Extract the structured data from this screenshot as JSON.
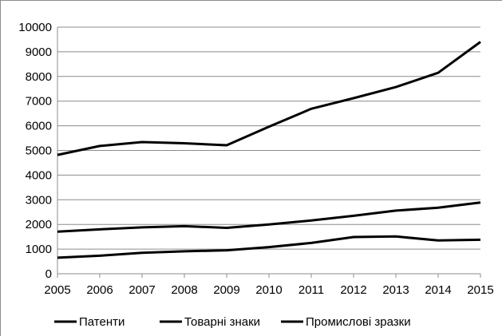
{
  "chart_data": {
    "type": "line",
    "x": [
      2005,
      2006,
      2007,
      2008,
      2009,
      2010,
      2011,
      2012,
      2013,
      2014,
      2015
    ],
    "xlim": [
      2005,
      2015
    ],
    "ylim": [
      0,
      10000
    ],
    "yticks": [
      0,
      1000,
      2000,
      3000,
      4000,
      5000,
      6000,
      7000,
      8000,
      9000,
      10000
    ],
    "grid": true,
    "legend_position": "bottom",
    "series_color": "#000000",
    "series": [
      {
        "name": "Патенти",
        "values": [
          4820,
          5180,
          5340,
          5290,
          5210,
          5960,
          6690,
          7120,
          7570,
          8150,
          9400
        ]
      },
      {
        "name": "Товарні знаки",
        "values": [
          1710,
          1800,
          1880,
          1930,
          1860,
          2000,
          2160,
          2350,
          2560,
          2680,
          2890
        ]
      },
      {
        "name": "Промислові зразки",
        "values": [
          650,
          730,
          850,
          910,
          950,
          1080,
          1250,
          1490,
          1510,
          1350,
          1380
        ]
      }
    ]
  }
}
